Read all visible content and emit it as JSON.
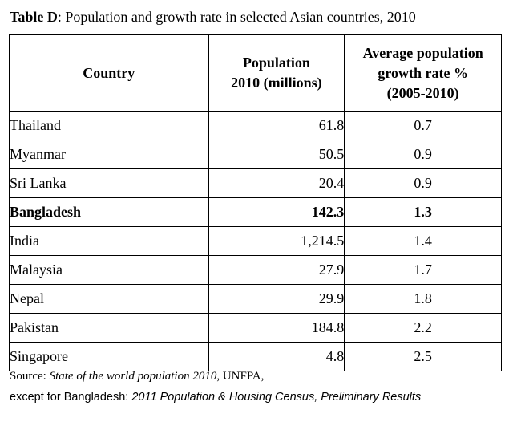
{
  "title": {
    "label": "Table D",
    "text": ": Population and growth rate in selected Asian countries, 2010"
  },
  "table": {
    "headers": {
      "country": "Country",
      "population": [
        "Population",
        "2010 (millions)"
      ],
      "growth": [
        "Average population",
        "growth rate %",
        "(2005-2010)"
      ]
    },
    "rows": [
      {
        "country": "Thailand",
        "population": "61.8",
        "growth": "0.7"
      },
      {
        "country": "Myanmar",
        "population": "50.5",
        "growth": "0.9"
      },
      {
        "country": "Sri Lanka",
        "population": "20.4",
        "growth": "0.9"
      },
      {
        "country": "Bangladesh",
        "population": "142.3",
        "growth": "1.3"
      },
      {
        "country": "India",
        "population": "1,214.5",
        "growth": "1.4"
      },
      {
        "country": "Malaysia",
        "population": "27.9",
        "growth": "1.7"
      },
      {
        "country": "Nepal",
        "population": "29.9",
        "growth": "1.8"
      },
      {
        "country": "Pakistan",
        "population": "184.8",
        "growth": "2.2"
      },
      {
        "country": "Singapore",
        "population": "4.8",
        "growth": "2.5"
      }
    ]
  },
  "source": {
    "line1_prefix": "Source: ",
    "line1_italic": "State of the world population 2010",
    "line1_suffix": ", UNFPA,",
    "line2_prefix": "except for Bangladesh: ",
    "line2_italic": "2011 Population & Housing Census, Preliminary Results"
  }
}
